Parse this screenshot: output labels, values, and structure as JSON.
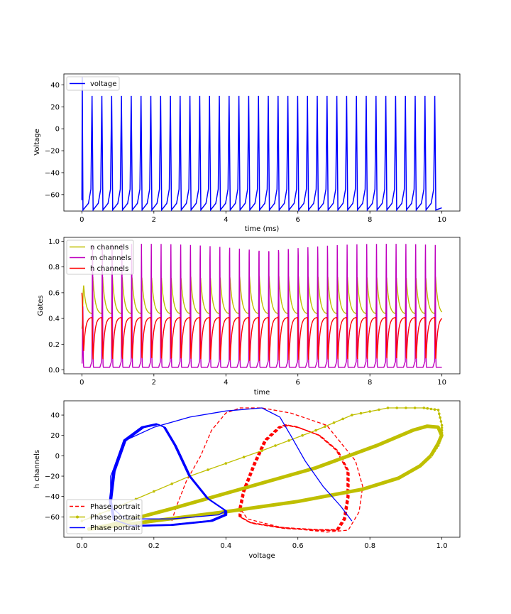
{
  "chart_data": [
    {
      "type": "line",
      "xlabel": "time (ms)",
      "ylabel": "Voltage",
      "xlim": [
        -0.5,
        10.5
      ],
      "ylim": [
        -75,
        50
      ],
      "xticks": [
        "0",
        "2",
        "4",
        "6",
        "8",
        "10"
      ],
      "yticks": [
        "40",
        "20",
        "0",
        "−20",
        "−40",
        "−60"
      ],
      "legend": "top-left",
      "grid": false,
      "series": [
        {
          "name": "voltage",
          "color": "#0000ff",
          "style": "solid",
          "spikes": {
            "t_start": 0.0,
            "t_end": 10.0,
            "first_peak": 47,
            "peak": 30,
            "rest": -65,
            "trough": -74,
            "interval_ms": 0.272
          }
        }
      ]
    },
    {
      "type": "line",
      "xlabel": "time",
      "ylabel": "Gates",
      "xlim": [
        -0.5,
        10.5
      ],
      "ylim": [
        -0.03,
        1.03
      ],
      "xticks": [
        "0",
        "2",
        "4",
        "6",
        "8",
        "10"
      ],
      "yticks": [
        "1.0",
        "0.8",
        "0.6",
        "0.4",
        "0.2",
        "0.0"
      ],
      "legend": "top-left",
      "grid": false,
      "series": [
        {
          "name": "n channels",
          "color": "#bfbf00",
          "style": "solid",
          "range": [
            0.43,
            0.73
          ],
          "start": 0.32
        },
        {
          "name": "m channels",
          "color": "#bf00bf",
          "style": "solid",
          "range": [
            0.02,
            0.98
          ],
          "start": 0.05
        },
        {
          "name": "h channels",
          "color": "#ff0000",
          "style": "solid",
          "range": [
            0.07,
            0.41
          ],
          "start": 0.6
        }
      ]
    },
    {
      "type": "line",
      "xlabel": "voltage",
      "ylabel": "h channels",
      "xlim": [
        -0.05,
        1.05
      ],
      "ylim": [
        -80,
        54
      ],
      "xticks": [
        "0.0",
        "0.2",
        "0.4",
        "0.6",
        "0.8",
        "1.0"
      ],
      "yticks": [
        "40",
        "20",
        "0",
        "−20",
        "−40",
        "−60"
      ],
      "legend": "bottom-left",
      "grid": false,
      "series": [
        {
          "name": "Phase portrait",
          "color": "#ff0000",
          "style": "dashed",
          "first_cycle": [
            [
              0.25,
              -64
            ],
            [
              0.26,
              -52
            ],
            [
              0.29,
              -25
            ],
            [
              0.33,
              0
            ],
            [
              0.36,
              25
            ],
            [
              0.4,
              42
            ],
            [
              0.44,
              47
            ],
            [
              0.5,
              47
            ],
            [
              0.58,
              42
            ],
            [
              0.68,
              30
            ],
            [
              0.76,
              -5
            ],
            [
              0.78,
              -30
            ],
            [
              0.77,
              -55
            ],
            [
              0.74,
              -73
            ],
            [
              0.68,
              -75
            ],
            [
              0.55,
              -70
            ],
            [
              0.46,
              -62
            ],
            [
              0.44,
              -52
            ]
          ],
          "limit_cycle": [
            [
              0.44,
              -52
            ],
            [
              0.45,
              -35
            ],
            [
              0.48,
              -8
            ],
            [
              0.51,
              15
            ],
            [
              0.55,
              28
            ],
            [
              0.57,
              30
            ],
            [
              0.6,
              28
            ],
            [
              0.66,
              20
            ],
            [
              0.71,
              5
            ],
            [
              0.74,
              -15
            ],
            [
              0.74,
              -40
            ],
            [
              0.73,
              -62
            ],
            [
              0.71,
              -73
            ],
            [
              0.66,
              -73
            ],
            [
              0.56,
              -71
            ],
            [
              0.47,
              -66
            ],
            [
              0.44,
              -60
            ],
            [
              0.44,
              -52
            ]
          ]
        },
        {
          "name": "Phase portrait",
          "color": "#bfbf00",
          "style": "solid-dotted",
          "first_cycle": [
            [
              0.0,
              -64
            ],
            [
              0.1,
              -50
            ],
            [
              0.3,
              -20
            ],
            [
              0.5,
              5
            ],
            [
              0.65,
              25
            ],
            [
              0.75,
              40
            ],
            [
              0.85,
              47
            ],
            [
              0.95,
              47
            ],
            [
              0.99,
              45
            ],
            [
              1.0,
              30
            ],
            [
              1.0,
              20
            ],
            [
              0.99,
              10
            ],
            [
              0.97,
              0
            ]
          ],
          "limit_cycle": [
            [
              0.97,
              0
            ],
            [
              0.94,
              -10
            ],
            [
              0.88,
              -22
            ],
            [
              0.78,
              -33
            ],
            [
              0.6,
              -45
            ],
            [
              0.4,
              -55
            ],
            [
              0.2,
              -64
            ],
            [
              0.05,
              -71
            ],
            [
              0.02,
              -72
            ],
            [
              0.08,
              -68
            ],
            [
              0.25,
              -52
            ],
            [
              0.45,
              -32
            ],
            [
              0.65,
              -12
            ],
            [
              0.82,
              10
            ],
            [
              0.92,
              25
            ],
            [
              0.96,
              29
            ],
            [
              0.99,
              28
            ],
            [
              1.0,
              20
            ],
            [
              0.99,
              12
            ],
            [
              0.97,
              0
            ]
          ]
        },
        {
          "name": "Phase portrait",
          "color": "#0000ff",
          "style": "solid",
          "first_cycle": [
            [
              0.75,
              -64
            ],
            [
              0.72,
              -50
            ],
            [
              0.67,
              -30
            ],
            [
              0.62,
              -5
            ],
            [
              0.58,
              20
            ],
            [
              0.55,
              38
            ],
            [
              0.5,
              47
            ],
            [
              0.4,
              44
            ],
            [
              0.3,
              38
            ],
            [
              0.2,
              28
            ],
            [
              0.12,
              15
            ],
            [
              0.08,
              -20
            ],
            [
              0.08,
              -50
            ],
            [
              0.12,
              -62
            ],
            [
              0.25,
              -62
            ],
            [
              0.38,
              -58
            ],
            [
              0.4,
              -54
            ]
          ],
          "limit_cycle": [
            [
              0.4,
              -54
            ],
            [
              0.35,
              -42
            ],
            [
              0.3,
              -20
            ],
            [
              0.26,
              10
            ],
            [
              0.23,
              28
            ],
            [
              0.21,
              31
            ],
            [
              0.17,
              28
            ],
            [
              0.12,
              15
            ],
            [
              0.09,
              -15
            ],
            [
              0.08,
              -45
            ],
            [
              0.09,
              -63
            ],
            [
              0.14,
              -69
            ],
            [
              0.25,
              -68
            ],
            [
              0.36,
              -64
            ],
            [
              0.4,
              -58
            ],
            [
              0.4,
              -54
            ]
          ]
        }
      ]
    }
  ]
}
